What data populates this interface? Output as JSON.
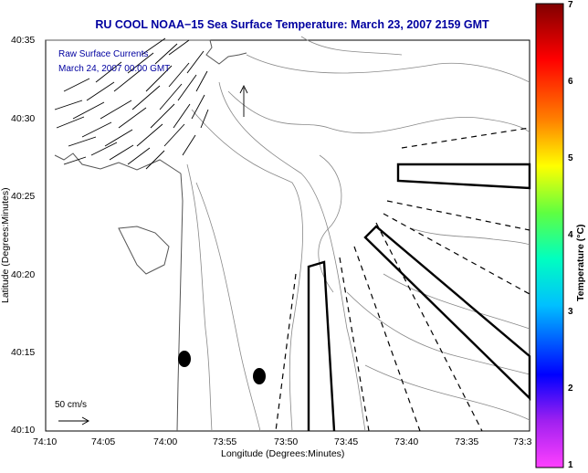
{
  "title": "RU COOL  NOAA−15  Sea Surface Temperature:  March 23, 2007 2159 GMT",
  "legend": {
    "line1": "Raw Surface Currents",
    "line2": "March 24, 2007  00:00 GMT"
  },
  "axes": {
    "ylabel": "Latitude (Degrees:Minutes)",
    "xlabel": "Longitude (Degrees:Minutes)",
    "yticks": [
      "40:35",
      "40:30",
      "40:25",
      "40:20",
      "40:15",
      "40:10"
    ],
    "xticks": [
      "74:10",
      "74:05",
      "74:00",
      "73:55",
      "73:50",
      "73:45",
      "73:40",
      "73:35",
      "73:3"
    ]
  },
  "colorbar": {
    "label": "Temperature (°C)",
    "ticks": [
      "7",
      "6",
      "5",
      "4",
      "3",
      "2",
      "1"
    ],
    "colors": [
      "#ff40ff",
      "#a020f0",
      "#0000ff",
      "#00c0ff",
      "#00ffc0",
      "#60ff40",
      "#ffff00",
      "#ff8000",
      "#ff0000",
      "#800000"
    ]
  },
  "scale": {
    "label": "50 cm/s"
  }
}
